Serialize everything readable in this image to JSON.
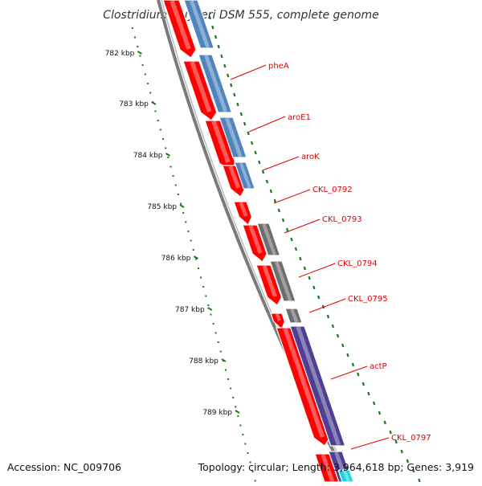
{
  "title": "Clostridium kluyveri DSM 555, complete genome",
  "footer": {
    "accession": "Accession: NC_009706",
    "topology": "Topology: circular; Length: 3,964,618 bp; Genes: 3,919"
  },
  "kbp_ticks": [
    "782 kbp",
    "783 kbp",
    "784 kbp",
    "785 kbp",
    "786 kbp",
    "787 kbp",
    "788 kbp",
    "789 kbp"
  ],
  "gene_labels": [
    "pheA",
    "aroE1",
    "aroK",
    "CKL_0792",
    "CKL_0793",
    "CKL_0794",
    "CKL_0795",
    "actP",
    "CKL_0797"
  ],
  "colors": {
    "cds": "#ff0000",
    "gene_blue": "#4f84be",
    "gene_gray": "#6e6e6e",
    "gene_purple": "#4f3f92",
    "gene_cyan": "#22d3dc",
    "backbone": "#7a7a7a",
    "tick_green": "#1a7a1a",
    "label_red": "#e00000"
  }
}
